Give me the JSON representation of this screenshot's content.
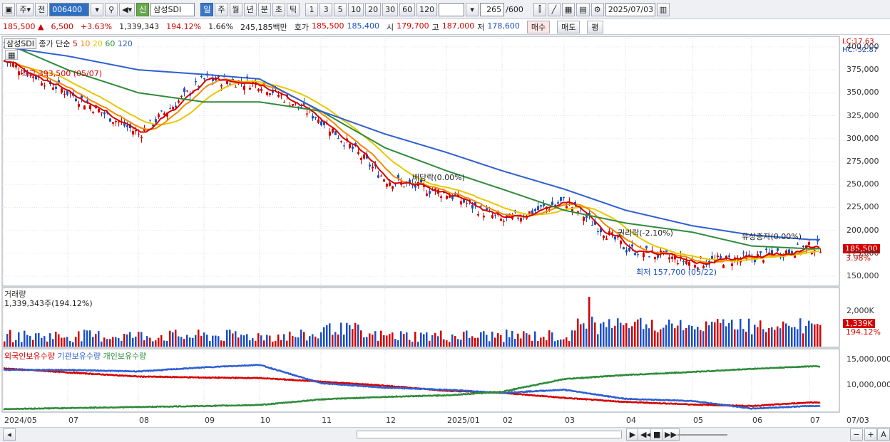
{
  "toolbar": {
    "type_select": "주",
    "prev_label": "전",
    "code": "006400",
    "credit_badge": "신",
    "stock_name": "삼성SDI",
    "periods": [
      "일",
      "주",
      "월",
      "년",
      "분",
      "초",
      "틱"
    ],
    "active_period": "일",
    "intervals": [
      "1",
      "3",
      "5",
      "10",
      "20",
      "30",
      "60",
      "120"
    ],
    "count": "265",
    "count_max": "/600",
    "date": "2025/07/03"
  },
  "quote": {
    "price": "185,500",
    "change": "6,500",
    "change_pct": "+3.63%",
    "volume": "1,339,343",
    "vol_ratio": "194.12%",
    "turnover_pct": "1.66%",
    "trade_value": "245,185백만",
    "hoga_label": "호가",
    "ask": "185,500",
    "bid": "185,400",
    "open_label": "시",
    "open": "179,700",
    "high_label": "고",
    "high": "187,000",
    "low_label": "저",
    "low": "178,600",
    "buy_label": "매수",
    "sell_label": "매도",
    "avg_label": "평"
  },
  "price_panel": {
    "title": "삼성SDI",
    "legend_prefix": "종가 단순",
    "ma": [
      {
        "label": "5",
        "color": "#d40000"
      },
      {
        "label": "10",
        "color": "#f08a00"
      },
      {
        "label": "20",
        "color": "#e6c800"
      },
      {
        "label": "60",
        "color": "#2e8b3a"
      },
      {
        "label": "120",
        "color": "#2f5fd0"
      }
    ],
    "lc": "LC:17.63",
    "hc": "HC:-52.87",
    "current_tag": "185,500",
    "current_pct": "3.98%",
    "annotations": {
      "high": "최고 393,500 (05/07)",
      "low": "최저 157,700 (05/22)",
      "dividend": "배당락(0.00%)",
      "rights": "권리락(-2.10%)",
      "paid_increase": "유상증자(0.00%)"
    },
    "y_ticks": [
      "400,000",
      "375,000",
      "350,000",
      "325,000",
      "300,000",
      "275,000",
      "250,000",
      "225,000",
      "200,000",
      "175,000",
      "150,000"
    ]
  },
  "volume_panel": {
    "title": "거래량",
    "value_text": "1,339,343주(194.12%)",
    "y_tick": "2,000K",
    "tag": "1,339K",
    "tag_pct": "194.12%"
  },
  "holding_panel": {
    "legend": [
      {
        "label": "외국인보유수량",
        "color": "#d40000"
      },
      {
        "label": "기관보유수량",
        "color": "#2f5fd0"
      },
      {
        "label": "개인보유수량",
        "color": "#2e8b3a"
      }
    ],
    "y_ticks": [
      "15,000,000",
      "10,000,000"
    ]
  },
  "x_axis": {
    "labels": [
      "2024/05",
      "07",
      "08",
      "09",
      "10",
      "11",
      "12",
      "2025/01",
      "02",
      "03",
      "04",
      "05",
      "06",
      "07"
    ],
    "current": "07/03"
  },
  "chart_data": {
    "type": "line",
    "x_labels": [
      "2024/05",
      "07",
      "08",
      "09",
      "10",
      "11",
      "12",
      "2025/01",
      "02",
      "03",
      "04",
      "05",
      "06",
      "07"
    ],
    "series": [
      {
        "name": "5",
        "values": [
          385000,
          350000,
          305000,
          365000,
          360000,
          320000,
          255000,
          240000,
          210000,
          232000,
          180000,
          165000,
          170000,
          182000
        ]
      },
      {
        "name": "120",
        "values": [
          400000,
          390000,
          375000,
          370000,
          365000,
          330000,
          305000,
          285000,
          265000,
          245000,
          222000,
          205000,
          195000,
          190000
        ]
      },
      {
        "name": "60",
        "values": [
          405000,
          375000,
          350000,
          340000,
          340000,
          330000,
          290000,
          265000,
          245000,
          222000,
          208000,
          198000,
          183000,
          180000
        ]
      }
    ],
    "ylim": [
      140000,
      410000
    ]
  }
}
